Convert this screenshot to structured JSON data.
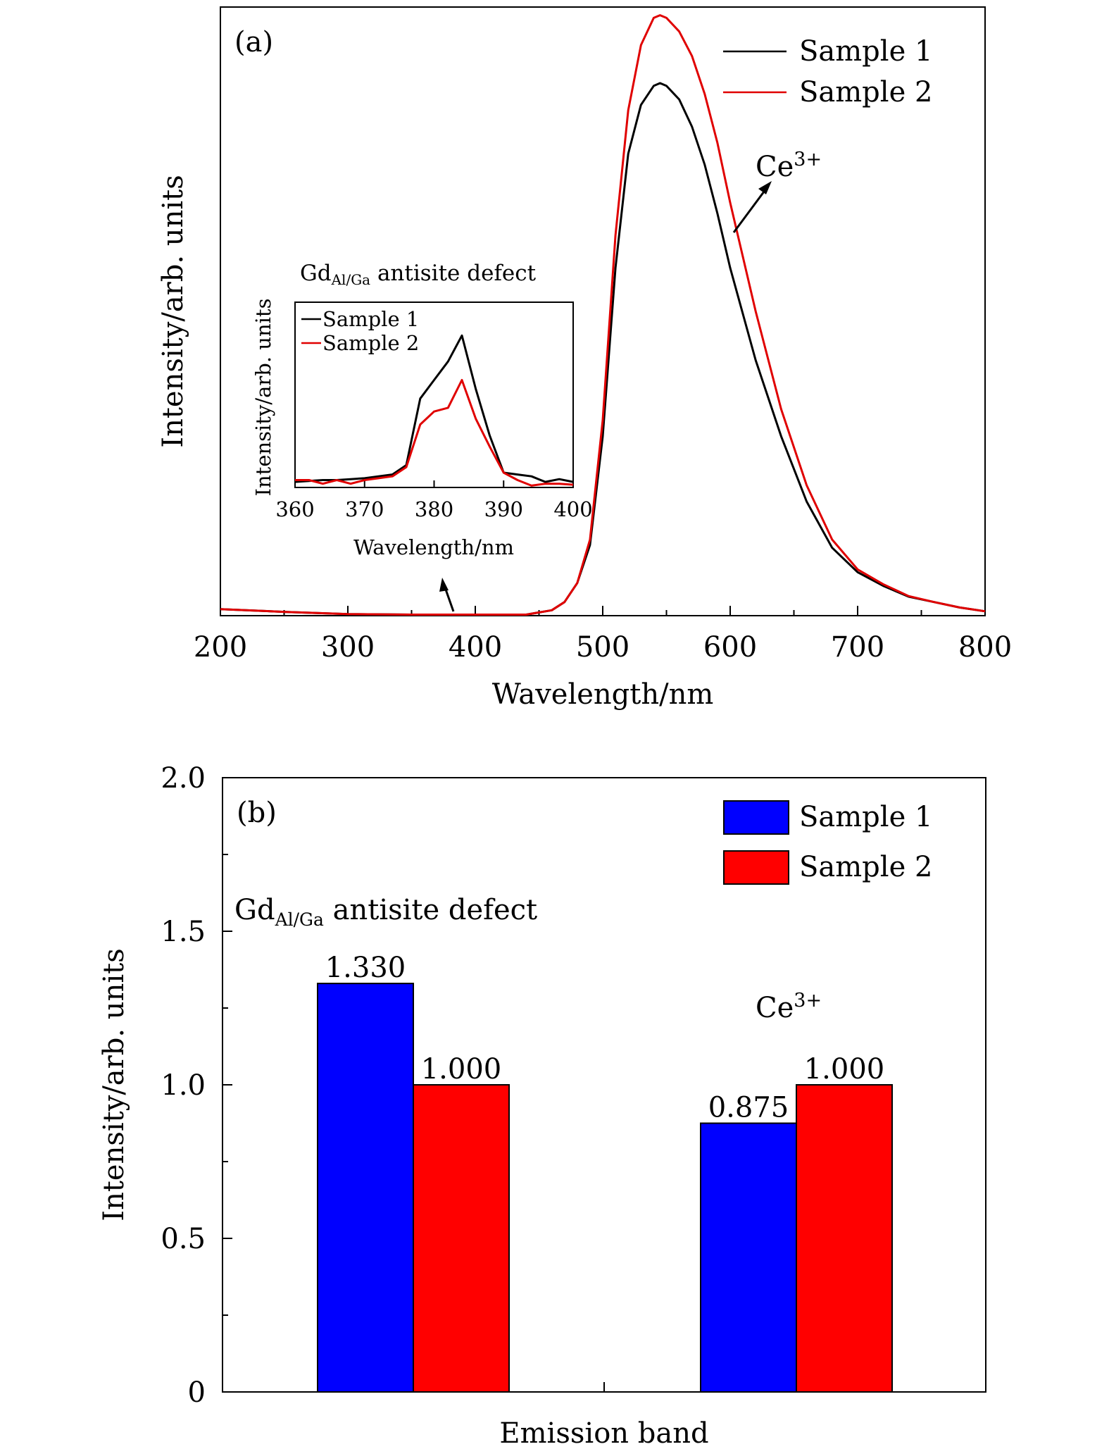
{
  "chart_data": [
    {
      "type": "line",
      "panel_label": "(a)",
      "xlabel": "Wavelength/nm",
      "ylabel": "Intensity/arb. units",
      "xlim": [
        200,
        800
      ],
      "ylim": [
        0,
        1.12
      ],
      "xticks": [
        200,
        300,
        400,
        500,
        600,
        700,
        800
      ],
      "yticks_shown": false,
      "legend_position": "top-right",
      "series": [
        {
          "name": "Sample 1",
          "color": "#000000",
          "x": [
            200,
            250,
            300,
            350,
            400,
            440,
            460,
            470,
            480,
            490,
            500,
            510,
            520,
            530,
            540,
            545,
            550,
            560,
            570,
            580,
            590,
            600,
            620,
            640,
            660,
            680,
            700,
            720,
            740,
            760,
            780,
            800
          ],
          "y": [
            0.012,
            0.007,
            0.003,
            0.002,
            0.002,
            0.002,
            0.01,
            0.025,
            0.06,
            0.13,
            0.33,
            0.64,
            0.85,
            0.94,
            0.975,
            0.98,
            0.975,
            0.95,
            0.9,
            0.83,
            0.74,
            0.64,
            0.47,
            0.33,
            0.21,
            0.125,
            0.08,
            0.055,
            0.035,
            0.025,
            0.015,
            0.008
          ]
        },
        {
          "name": "Sample 2",
          "color": "#e00000",
          "x": [
            200,
            250,
            300,
            350,
            400,
            440,
            460,
            470,
            480,
            490,
            500,
            510,
            520,
            530,
            540,
            545,
            550,
            560,
            570,
            580,
            590,
            600,
            620,
            640,
            660,
            680,
            700,
            720,
            740,
            760,
            780,
            800
          ],
          "y": [
            0.012,
            0.007,
            0.003,
            0.002,
            0.002,
            0.002,
            0.01,
            0.025,
            0.06,
            0.14,
            0.36,
            0.7,
            0.93,
            1.05,
            1.1,
            1.105,
            1.1,
            1.075,
            1.03,
            0.96,
            0.87,
            0.76,
            0.56,
            0.38,
            0.24,
            0.14,
            0.085,
            0.058,
            0.036,
            0.025,
            0.015,
            0.008
          ]
        }
      ],
      "annotations": [
        {
          "text": "Ce",
          "superscript": "3+"
        }
      ],
      "inset": {
        "title_main": "Gd",
        "title_sub": "Al/Ga",
        "title_rest": " antisite defect",
        "xlabel": "Wavelength/nm",
        "ylabel": "Intensity/arb. units",
        "xlim": [
          360,
          400
        ],
        "ylim": [
          0,
          1.0
        ],
        "xticks": [
          360,
          370,
          380,
          390,
          400
        ],
        "legend_position": "top-left",
        "series": [
          {
            "name": "Sample 1",
            "color": "#000000",
            "x": [
              360,
              362,
              364,
              366,
              368,
              370,
              372,
              374,
              376,
              378,
              380,
              382,
              384,
              386,
              388,
              390,
              392,
              394,
              396,
              398,
              400
            ],
            "y": [
              0.03,
              0.035,
              0.04,
              0.04,
              0.045,
              0.05,
              0.06,
              0.07,
              0.12,
              0.48,
              0.58,
              0.68,
              0.82,
              0.53,
              0.28,
              0.08,
              0.07,
              0.06,
              0.03,
              0.045,
              0.03
            ]
          },
          {
            "name": "Sample 2",
            "color": "#e00000",
            "x": [
              360,
              362,
              364,
              366,
              368,
              370,
              372,
              374,
              376,
              378,
              380,
              382,
              384,
              386,
              388,
              390,
              392,
              394,
              396,
              398,
              400
            ],
            "y": [
              0.04,
              0.04,
              0.02,
              0.04,
              0.02,
              0.04,
              0.05,
              0.06,
              0.11,
              0.34,
              0.41,
              0.43,
              0.58,
              0.37,
              0.22,
              0.08,
              0.04,
              0.01,
              0.02,
              0.02,
              0.015
            ]
          }
        ]
      }
    },
    {
      "type": "bar",
      "panel_label": "(b)",
      "xlabel": "Emission band",
      "ylabel": "Intensity/arb. units",
      "ylim": [
        0,
        2.0
      ],
      "yticks": [
        "0",
        "0.5",
        "1.0",
        "1.5",
        "2.0"
      ],
      "legend_position": "top-right",
      "categories": [
        {
          "main": "Gd",
          "sub": "Al/Ga",
          "rest": " antisite defect",
          "sup": ""
        },
        {
          "main": "Ce",
          "sub": "",
          "rest": "",
          "sup": "3+"
        }
      ],
      "series": [
        {
          "name": "Sample 1",
          "color": "#0000ff",
          "values": [
            1.33,
            0.875
          ],
          "labels": [
            "1.330",
            "0.875"
          ]
        },
        {
          "name": "Sample 2",
          "color": "#ff0000",
          "values": [
            1.0,
            1.0
          ],
          "labels": [
            "1.000",
            "1.000"
          ]
        }
      ]
    }
  ]
}
